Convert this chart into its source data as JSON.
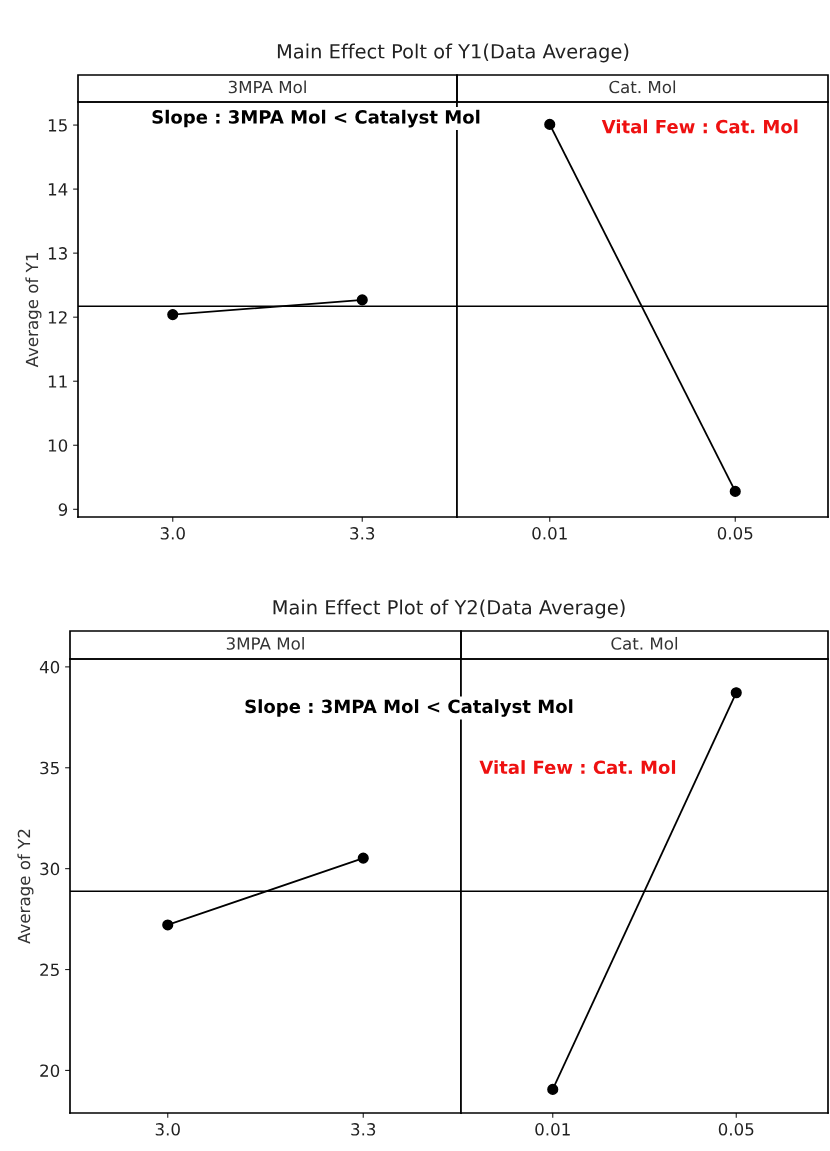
{
  "chart_data": [
    {
      "type": "line",
      "title": "Main Effect Polt of Y1(Data Average)",
      "subtitle": "3MPA Mol",
      "ylabel": "Average of Y1",
      "categories": [
        "3.0",
        "3.3"
      ],
      "values": [
        12.04,
        12.27
      ],
      "color": "#000000",
      "marker": "circle",
      "ylim": [
        8.88,
        15.36
      ],
      "yticks": [
        9,
        10,
        11,
        12,
        13,
        14,
        15
      ],
      "ref_lines": [
        {
          "axis": "y",
          "value": 12.17
        }
      ],
      "annotations": [
        "Slope : 3MPA Mol < Catalyst Mol"
      ],
      "grid": false
    },
    {
      "type": "line",
      "subtitle": "Cat. Mol",
      "categories": [
        "0.01",
        "0.05"
      ],
      "values": [
        15.01,
        9.28
      ],
      "color": "#000000",
      "marker": "circle",
      "ylim": [
        8.88,
        15.36
      ],
      "tick_labels": "x",
      "ref_lines": [
        {
          "axis": "y",
          "value": 12.17
        }
      ],
      "annotations": [
        "Vital Few : Cat. Mol"
      ],
      "grid": false
    },
    {
      "type": "line",
      "title": "Main Effect Plot of Y2(Data Average)",
      "subtitle": "3MPA Mol",
      "ylabel": "Average of Y2",
      "categories": [
        "3.0",
        "3.3"
      ],
      "values": [
        27.21,
        30.52
      ],
      "color": "#000000",
      "marker": "circle",
      "ylim": [
        17.89,
        40.39
      ],
      "yticks": [
        20,
        25,
        30,
        35,
        40
      ],
      "ref_lines": [
        {
          "axis": "y",
          "value": 28.88
        }
      ],
      "annotations": [
        "Slope : 3MPA Mol < Catalyst Mol"
      ],
      "grid": false
    },
    {
      "type": "line",
      "subtitle": "Cat. Mol",
      "categories": [
        "0.01",
        "0.05"
      ],
      "values": [
        19.06,
        38.72
      ],
      "color": "#000000",
      "marker": "circle",
      "ylim": [
        17.89,
        40.39
      ],
      "tick_labels": "x",
      "ref_lines": [
        {
          "axis": "y",
          "value": 28.88
        }
      ],
      "annotations": [
        "Vital Few : Cat. Mol"
      ],
      "grid": false
    }
  ]
}
